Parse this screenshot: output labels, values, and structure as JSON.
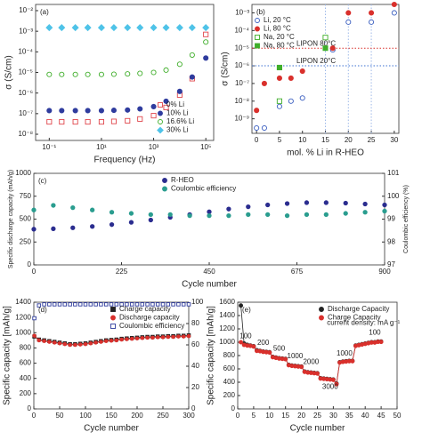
{
  "chart_data": [
    {
      "type": "scatter",
      "panel": "(a)",
      "xlabel": "Frequency (Hz)",
      "ylabel": "σ (S/cm)",
      "xscale": "log",
      "yscale": "log",
      "xlim": [
        0.03,
        200000
      ],
      "ylim": [
        5e-09,
        0.02
      ],
      "xticks": [
        {
          "value": 0.1,
          "label": "10⁻¹"
        },
        {
          "value": 10,
          "label": "10¹"
        },
        {
          "value": 1000,
          "label": "10³"
        },
        {
          "value": 100000,
          "label": "10⁵"
        }
      ],
      "yticks": [
        {
          "value": 1e-08,
          "label": "10⁻⁸"
        },
        {
          "value": 1e-07,
          "label": "10⁻⁷"
        },
        {
          "value": 1e-06,
          "label": "10⁻⁶"
        },
        {
          "value": 1e-05,
          "label": "10⁻⁵"
        },
        {
          "value": 0.0001,
          "label": "10⁻⁴"
        },
        {
          "value": 0.001,
          "label": "10⁻³"
        },
        {
          "value": 0.01,
          "label": "10⁻²"
        }
      ],
      "legend": "bottom-right",
      "x": [
        0.1,
        0.3,
        1,
        3,
        10,
        30,
        100,
        300,
        1000,
        3000,
        10000,
        30000,
        100000
      ],
      "series": [
        {
          "name": "0% Li",
          "color": "#e0474c",
          "marker": "square",
          "filled": false,
          "values": [
            4e-08,
            4e-08,
            4e-08,
            4e-08,
            4e-08,
            4.2e-08,
            4.5e-08,
            5.5e-08,
            8e-08,
            2e-07,
            8e-07,
            5e-06,
            0.0007
          ]
        },
        {
          "name": "10% Li",
          "color": "#2f3c9e",
          "marker": "circle",
          "filled": true,
          "values": [
            1.4e-07,
            1.4e-07,
            1.4e-07,
            1.4e-07,
            1.4e-07,
            1.45e-07,
            1.5e-07,
            1.7e-07,
            2.2e-07,
            4e-07,
            1.2e-06,
            6e-06,
            5e-05
          ]
        },
        {
          "name": "16.6% Li",
          "color": "#3fae2a",
          "marker": "circle",
          "filled": false,
          "values": [
            8e-06,
            8e-06,
            8e-06,
            8e-06,
            8e-06,
            8.2e-06,
            8.5e-06,
            9e-06,
            1e-05,
            1.3e-05,
            2.5e-05,
            7e-05,
            0.0003
          ]
        },
        {
          "name": "30% Li",
          "color": "#4fc3e8",
          "marker": "diamond",
          "filled": true,
          "values": [
            0.0015,
            0.0015,
            0.0015,
            0.0015,
            0.0015,
            0.0015,
            0.0015,
            0.0015,
            0.0015,
            0.0015,
            0.0015,
            0.0015,
            0.0015
          ]
        }
      ]
    },
    {
      "type": "scatter",
      "panel": "(b)",
      "xlabel": "mol. % Li in R-HEO",
      "ylabel": "σ (S/cm)",
      "yscale": "log",
      "xlim": [
        -1,
        31
      ],
      "ylim": [
        1.5e-10,
        0.003
      ],
      "xticks": [
        0,
        5,
        10,
        15,
        20,
        25,
        30
      ],
      "yticks": [
        {
          "value": 1e-09,
          "label": "10⁻⁹"
        },
        {
          "value": 1e-08,
          "label": "10⁻⁸"
        },
        {
          "value": 1e-07,
          "label": "10⁻⁷"
        },
        {
          "value": 1e-06,
          "label": "10⁻⁶"
        },
        {
          "value": 1e-05,
          "label": "10⁻⁵"
        },
        {
          "value": 0.0001,
          "label": "10⁻⁴"
        },
        {
          "value": 0.001,
          "label": "10⁻³"
        }
      ],
      "legend": "top-left",
      "vlines": [
        15,
        20,
        25
      ],
      "hlines": [
        {
          "label": "LIPON 80°C",
          "value": 1e-05,
          "color": "#d9302c"
        },
        {
          "label": "LIPON 20°C",
          "value": 1e-06,
          "color": "#3b6fd1"
        }
      ],
      "series": [
        {
          "name": "Li, 20 °C",
          "color": "#3b5fc0",
          "marker": "circle",
          "filled": false,
          "x": [
            0,
            1.7,
            5,
            7.5,
            10,
            16.6,
            20,
            25,
            30
          ],
          "values": [
            3e-10,
            3e-10,
            5e-09,
            1e-08,
            1.5e-08,
            8e-06,
            0.0003,
            0.0003,
            0.001
          ]
        },
        {
          "name": "Li, 80 °C",
          "color": "#d9302c",
          "marker": "circle",
          "filled": true,
          "x": [
            0,
            1.7,
            5,
            7.5,
            10,
            16.6,
            20,
            25,
            30
          ],
          "values": [
            3e-09,
            1e-07,
            2e-07,
            2e-07,
            5e-07,
            1e-05,
            0.001,
            0.001,
            0.003
          ]
        },
        {
          "name": "Na, 20 °C",
          "color": "#3fae2a",
          "marker": "square",
          "filled": false,
          "x": [
            5,
            15
          ],
          "values": [
            1e-08,
            4e-05
          ]
        },
        {
          "name": "Na, 80 °C",
          "color": "#3fae2a",
          "marker": "square",
          "filled": true,
          "x": [
            5,
            15
          ],
          "values": [
            8e-07,
            1e-05
          ]
        }
      ]
    },
    {
      "type": "scatter",
      "panel": "(c)",
      "xlabel": "Cycle number",
      "ylabel": "Specific discharge capacity (mAh/g)",
      "y2label": "Coulombic efficiency (%)",
      "xlim": [
        0,
        900
      ],
      "ylim": [
        0,
        1000
      ],
      "y2lim": [
        97,
        101
      ],
      "xticks": [
        0,
        225,
        450,
        675,
        900
      ],
      "yticks": [
        0,
        250,
        500,
        750,
        1000
      ],
      "y2ticks": [
        97,
        98,
        99,
        100,
        101
      ],
      "legend": "top",
      "x": [
        0,
        50,
        100,
        150,
        200,
        250,
        300,
        350,
        400,
        450,
        500,
        550,
        600,
        650,
        700,
        750,
        800,
        850,
        900
      ],
      "series": [
        {
          "name": "R-HEO",
          "color": "#2b2d8f",
          "marker": "circle",
          "filled": true,
          "values": [
            390,
            395,
            405,
            420,
            440,
            465,
            490,
            520,
            550,
            580,
            610,
            635,
            655,
            670,
            680,
            680,
            675,
            665,
            655
          ]
        },
        {
          "name": "Coulombic efficiency",
          "color": "#2a9d8f",
          "marker": "circle",
          "filled": true,
          "axis": "y2",
          "values": [
            99.4,
            99.6,
            99.5,
            99.4,
            99.3,
            99.25,
            99.2,
            99.2,
            99.15,
            99.15,
            99.15,
            99.2,
            99.2,
            99.15,
            99.2,
            99.2,
            99.25,
            99.3,
            99.35
          ]
        }
      ]
    },
    {
      "type": "scatter",
      "panel": "(d)",
      "xlabel": "Cycle number",
      "ylabel": "Specific capacity [mAh/g]",
      "xlim": [
        0,
        300
      ],
      "ylim": [
        0,
        1400
      ],
      "y2lim": [
        0,
        100
      ],
      "xticks": [
        0,
        50,
        100,
        150,
        200,
        250,
        300
      ],
      "yticks": [
        0,
        200,
        400,
        600,
        800,
        1000,
        1200,
        1400
      ],
      "y2ticks": [
        0,
        20,
        40,
        60,
        80,
        100
      ],
      "legend": "top-right",
      "x": [
        1,
        10,
        20,
        30,
        40,
        50,
        60,
        70,
        80,
        90,
        100,
        110,
        120,
        130,
        140,
        150,
        160,
        170,
        180,
        190,
        200,
        210,
        220,
        230,
        240,
        250,
        260,
        270,
        280,
        290,
        300
      ],
      "series": [
        {
          "name": "Charge capacity",
          "color": "#222222",
          "marker": "square",
          "filled": true,
          "line": true,
          "values": [
            950,
            910,
            900,
            890,
            880,
            870,
            860,
            850,
            850,
            855,
            860,
            870,
            880,
            890,
            900,
            905,
            910,
            920,
            925,
            930,
            935,
            940,
            945,
            945,
            950,
            950,
            955,
            955,
            960,
            960,
            965
          ]
        },
        {
          "name": "Discharge capacity",
          "color": "#d9302c",
          "marker": "circle",
          "filled": true,
          "line": true,
          "values": [
            960,
            900,
            890,
            880,
            870,
            860,
            850,
            840,
            840,
            845,
            850,
            860,
            870,
            880,
            890,
            895,
            900,
            910,
            915,
            920,
            925,
            930,
            935,
            935,
            940,
            940,
            945,
            945,
            950,
            950,
            955
          ]
        },
        {
          "name": "Coulombic efficiency",
          "color": "#2f3c9e",
          "marker": "square",
          "filled": false,
          "axis": "y2",
          "values": [
            85,
            97,
            98,
            98,
            98,
            98,
            98,
            98,
            98,
            98,
            98,
            98,
            98,
            98,
            98,
            98,
            98,
            98,
            98,
            98,
            98,
            98,
            98,
            98,
            98,
            98,
            98,
            98,
            98,
            98,
            98
          ]
        }
      ]
    },
    {
      "type": "scatter",
      "panel": "(e)",
      "xlabel": "Cycle number",
      "ylabel": "Specific capacity [mAh/g]",
      "xlim": [
        0,
        50
      ],
      "ylim": [
        0,
        1600
      ],
      "xticks": [
        0,
        5,
        10,
        15,
        20,
        25,
        30,
        35,
        40,
        45,
        50
      ],
      "yticks": [
        0,
        200,
        400,
        600,
        800,
        1000,
        1200,
        1400,
        1600
      ],
      "legend": "top-right",
      "annotations": [
        "100",
        "200",
        "500",
        "1000",
        "2000",
        "3000",
        "1000",
        "100",
        "current density: mA g⁻¹"
      ],
      "x": [
        1,
        2,
        3,
        4,
        5,
        6,
        7,
        8,
        9,
        10,
        11,
        12,
        13,
        14,
        15,
        16,
        17,
        18,
        19,
        20,
        21,
        22,
        23,
        24,
        25,
        26,
        27,
        28,
        29,
        30,
        31,
        32,
        33,
        34,
        35,
        36,
        37,
        38,
        39,
        40,
        41,
        42,
        43,
        44,
        45
      ],
      "series": [
        {
          "name": "Discharge Capacity",
          "color": "#222222",
          "marker": "circle",
          "filled": true,
          "line": true,
          "values": [
            1550,
            980,
            960,
            950,
            940,
            880,
            870,
            860,
            855,
            850,
            780,
            770,
            760,
            755,
            750,
            660,
            650,
            645,
            640,
            635,
            560,
            550,
            545,
            540,
            535,
            460,
            455,
            450,
            445,
            440,
            380,
            700,
            710,
            715,
            720,
            720,
            950,
            960,
            970,
            980,
            990,
            1000,
            1000,
            1010,
            1010
          ]
        },
        {
          "name": "Charge Capacity",
          "color": "#d9302c",
          "marker": "circle",
          "filled": true,
          "line": true,
          "values": [
            1000,
            960,
            950,
            945,
            935,
            870,
            865,
            855,
            850,
            845,
            775,
            765,
            755,
            750,
            745,
            655,
            645,
            640,
            635,
            630,
            555,
            545,
            540,
            535,
            530,
            455,
            450,
            445,
            440,
            435,
            370,
            695,
            705,
            710,
            715,
            715,
            945,
            955,
            965,
            975,
            985,
            995,
            995,
            1005,
            1005
          ]
        }
      ]
    }
  ]
}
